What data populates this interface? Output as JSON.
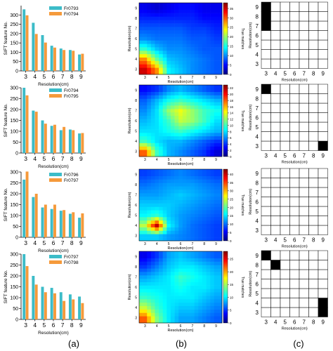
{
  "panel_labels": [
    "(a)",
    "(b)",
    "(c)"
  ],
  "colors": {
    "teal": "#3cbcc8",
    "orange": "#f59a3b",
    "heat_scale": [
      "#00007f",
      "#0000ff",
      "#007fff",
      "#00ffff",
      "#7fff7f",
      "#ffff00",
      "#ff7f00",
      "#ff0000",
      "#7f0000"
    ],
    "cell_black": "#000000",
    "cell_white": "#ffffff"
  },
  "chart_data": [
    {
      "type": "bar",
      "panel": "(a)",
      "title": "",
      "xlabel": "Resolution(cm)",
      "ylabel": "SIFT feature No.",
      "categories": [
        "3",
        "4",
        "5",
        "6",
        "7",
        "8",
        "9"
      ],
      "ylim": [
        0,
        350
      ],
      "yticks": [
        "0",
        "50",
        "100",
        "150",
        "200",
        "250",
        "300"
      ],
      "legend_position": "top-right",
      "series": [
        {
          "name": "Fr0793",
          "values": [
            330,
            258,
            192,
            135,
            120,
            112,
            88
          ]
        },
        {
          "name": "Fr0794",
          "values": [
            298,
            198,
            152,
            125,
            112,
            108,
            92
          ]
        }
      ]
    },
    {
      "type": "bar",
      "panel": "(a)",
      "title": "",
      "xlabel": "Resolution(cm)",
      "ylabel": "SIFT feature No.",
      "categories": [
        "3",
        "4",
        "5",
        "6",
        "7",
        "8",
        "9"
      ],
      "ylim": [
        0,
        300
      ],
      "yticks": [
        "0",
        "50",
        "100",
        "150",
        "200",
        "250",
        "300"
      ],
      "legend_position": "top-right",
      "series": [
        {
          "name": "Fr0794",
          "values": [
            300,
            195,
            150,
            125,
            105,
            108,
            90
          ]
        },
        {
          "name": "Fr0795",
          "values": [
            265,
            190,
            135,
            130,
            120,
            105,
            92
          ]
        }
      ]
    },
    {
      "type": "bar",
      "panel": "(a)",
      "title": "",
      "xlabel": "Resolution(cm)",
      "ylabel": "SIFT feature No.",
      "categories": [
        "3",
        "4",
        "5",
        "6",
        "7",
        "8",
        "9"
      ],
      "ylim": [
        0,
        300
      ],
      "yticks": [
        "0",
        "50",
        "100",
        "150",
        "200",
        "250",
        "300"
      ],
      "legend_position": "top-right",
      "series": [
        {
          "name": "Fr0796",
          "values": [
            265,
            185,
            137,
            130,
            122,
            108,
            90
          ]
        },
        {
          "name": "Fr0797",
          "values": [
            302,
            200,
            150,
            150,
            125,
            115,
            110
          ]
        }
      ]
    },
    {
      "type": "bar",
      "panel": "(a)",
      "title": "",
      "xlabel": "Resolution(cm)",
      "ylabel": "SIFT feature No.",
      "categories": [
        "3",
        "4",
        "5",
        "6",
        "7",
        "8",
        "9"
      ],
      "ylim": [
        0,
        300
      ],
      "yticks": [
        "0",
        "50",
        "100",
        "150",
        "200",
        "250",
        "300"
      ],
      "legend_position": "top-right",
      "series": [
        {
          "name": "Fr0797",
          "values": [
            300,
            200,
            150,
            145,
            125,
            115,
            105
          ]
        },
        {
          "name": "Fr0798",
          "values": [
            245,
            160,
            125,
            120,
            85,
            92,
            75
          ]
        }
      ]
    },
    {
      "type": "heatmap",
      "panel": "(b)",
      "xlabel": "Resolution(cm)",
      "ylabel": "Resolution(cm)",
      "colorbar_label": "True matches",
      "x": [
        3,
        4,
        5,
        6,
        7,
        8,
        9
      ],
      "y": [
        3,
        4,
        5,
        6,
        7,
        8,
        9
      ],
      "colorbar_ticks": [
        "0",
        "5",
        "10",
        "15",
        "20",
        "25",
        "30",
        "35"
      ],
      "zlim": [
        0,
        38
      ],
      "z": [
        [
          35,
          28,
          14,
          12,
          10,
          9,
          8
        ],
        [
          28,
          18,
          12,
          11,
          10,
          9,
          8
        ],
        [
          16,
          12,
          10,
          10,
          9,
          8,
          8
        ],
        [
          10,
          9,
          9,
          9,
          8,
          8,
          7
        ],
        [
          8,
          8,
          8,
          8,
          7,
          7,
          6
        ],
        [
          6,
          6,
          6,
          6,
          6,
          5,
          5
        ],
        [
          4,
          3,
          4,
          5,
          5,
          4,
          4
        ]
      ]
    },
    {
      "type": "heatmap",
      "panel": "(b)",
      "xlabel": "Resolution(cm)",
      "ylabel": "Resolution(cm)",
      "colorbar_label": "True matches",
      "x": [
        3,
        4,
        5,
        6,
        7,
        8,
        9
      ],
      "y": [
        3,
        4,
        5,
        6,
        7,
        8,
        9
      ],
      "colorbar_ticks": [
        "0",
        "2",
        "4",
        "6",
        "8",
        "10",
        "12",
        "14",
        "16",
        "18",
        "20",
        "22"
      ],
      "zlim": [
        0,
        23
      ],
      "z": [
        [
          18,
          10,
          7,
          6,
          5,
          4,
          2
        ],
        [
          10,
          8,
          7,
          7,
          6,
          5,
          4
        ],
        [
          8,
          8,
          9,
          10,
          9,
          8,
          7
        ],
        [
          7,
          8,
          10,
          13,
          12,
          10,
          8
        ],
        [
          6,
          8,
          12,
          14,
          12,
          10,
          9
        ],
        [
          5,
          7,
          9,
          10,
          9,
          8,
          7
        ],
        [
          3,
          4,
          6,
          7,
          6,
          5,
          4
        ]
      ]
    },
    {
      "type": "heatmap",
      "panel": "(b)",
      "xlabel": "Resolution(cm)",
      "ylabel": "Resolution(cm)",
      "colorbar_label": "True matches",
      "x": [
        3,
        4,
        5,
        6,
        7,
        8,
        9
      ],
      "y": [
        3,
        4,
        5,
        6,
        7,
        8,
        9
      ],
      "colorbar_ticks": [
        "0",
        "5",
        "10",
        "15",
        "20",
        "25",
        "30",
        "35",
        "40"
      ],
      "zlim": [
        0,
        43
      ],
      "z": [
        [
          14,
          14,
          12,
          11,
          10,
          9,
          8
        ],
        [
          24,
          40,
          16,
          12,
          10,
          9,
          8
        ],
        [
          16,
          18,
          14,
          12,
          11,
          10,
          9
        ],
        [
          14,
          14,
          14,
          13,
          12,
          11,
          10
        ],
        [
          12,
          12,
          13,
          14,
          13,
          12,
          11
        ],
        [
          10,
          11,
          12,
          12,
          12,
          11,
          10
        ],
        [
          8,
          9,
          10,
          11,
          10,
          9,
          8
        ]
      ]
    },
    {
      "type": "heatmap",
      "panel": "(b)",
      "xlabel": "Resolution(cm)",
      "ylabel": "Resolution(cm)",
      "colorbar_label": "True matches",
      "x": [
        3,
        4,
        5,
        6,
        7,
        8,
        9
      ],
      "y": [
        3,
        4,
        5,
        6,
        7,
        8,
        9
      ],
      "colorbar_ticks": [
        "0",
        "5",
        "10",
        "15",
        "20",
        "25"
      ],
      "zlim": [
        0,
        28
      ],
      "z": [
        [
          22,
          14,
          10,
          8,
          8,
          7,
          6
        ],
        [
          16,
          12,
          10,
          9,
          9,
          8,
          7
        ],
        [
          12,
          11,
          10,
          10,
          10,
          9,
          8
        ],
        [
          10,
          10,
          10,
          11,
          10,
          10,
          9
        ],
        [
          8,
          9,
          10,
          12,
          11,
          10,
          9
        ],
        [
          5,
          7,
          9,
          10,
          10,
          9,
          8
        ],
        [
          3,
          5,
          8,
          9,
          8,
          7,
          6
        ]
      ]
    },
    {
      "type": "table",
      "panel": "(c)",
      "xlabel": "Resolution(cm)",
      "ylabel": "Resolution(cm)",
      "x": [
        "3",
        "4",
        "5",
        "6",
        "7",
        "8",
        "9"
      ],
      "y": [
        "3",
        "4",
        "5",
        "6",
        "7",
        "8",
        "9"
      ],
      "black_cells": [
        [
          "3",
          "9"
        ],
        [
          "3",
          "8"
        ],
        [
          "3",
          "7"
        ]
      ]
    },
    {
      "type": "table",
      "panel": "(c)",
      "xlabel": "Resolution(cm)",
      "ylabel": "Resolution(cm)",
      "x": [
        "3",
        "4",
        "5",
        "6",
        "7",
        "8",
        "9"
      ],
      "y": [
        "3",
        "4",
        "5",
        "6",
        "7",
        "8",
        "9"
      ],
      "black_cells": [
        [
          "3",
          "9"
        ],
        [
          "9",
          "3"
        ]
      ]
    },
    {
      "type": "table",
      "panel": "(c)",
      "xlabel": "Resolution(cm)",
      "ylabel": "Resolution(cm)",
      "x": [
        "3",
        "4",
        "5",
        "6",
        "7",
        "8",
        "9"
      ],
      "y": [
        "3",
        "4",
        "5",
        "6",
        "7",
        "8",
        "9"
      ],
      "black_cells": []
    },
    {
      "type": "table",
      "panel": "(c)",
      "xlabel": "Resolution(cm)",
      "ylabel": "Resolution(cm)",
      "x": [
        "3",
        "4",
        "5",
        "6",
        "7",
        "8",
        "9"
      ],
      "y": [
        "3",
        "4",
        "5",
        "6",
        "7",
        "8",
        "9"
      ],
      "black_cells": [
        [
          "3",
          "9"
        ],
        [
          "4",
          "8"
        ],
        [
          "9",
          "4"
        ],
        [
          "9",
          "3"
        ]
      ]
    }
  ]
}
